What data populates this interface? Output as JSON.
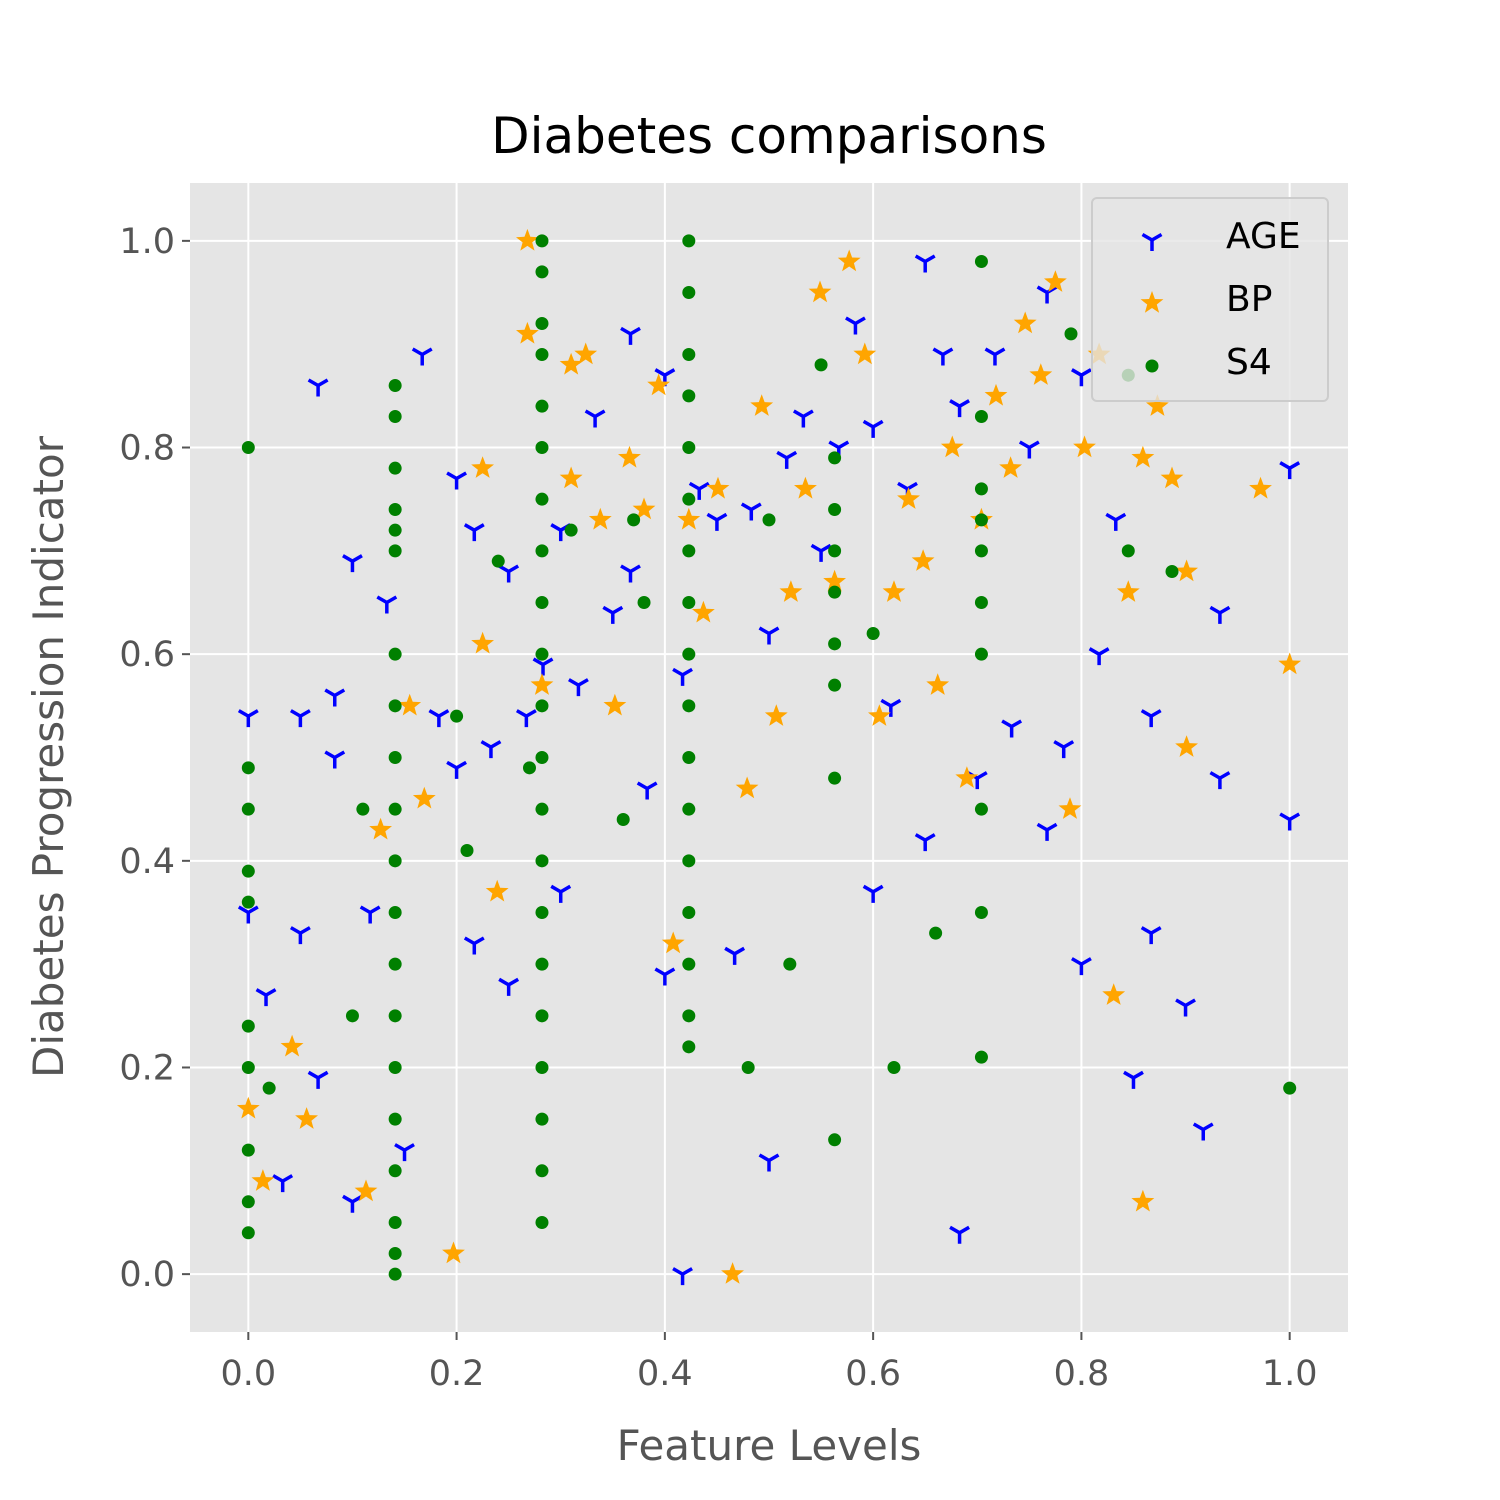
{
  "chart_data": {
    "type": "scatter",
    "title": "Diabetes comparisons",
    "xlabel": "Feature Levels",
    "ylabel": "Diabetes Progression Indicator",
    "xlim": [
      -0.056,
      1.056
    ],
    "ylim": [
      -0.056,
      1.056
    ],
    "xticks": [
      "0.0",
      "0.2",
      "0.4",
      "0.6",
      "0.8",
      "1.0"
    ],
    "yticks": [
      "0.0",
      "0.2",
      "0.4",
      "0.6",
      "0.8",
      "1.0"
    ],
    "grid": true,
    "legend_position": "top-right",
    "background": "#e5e5e5",
    "series": [
      {
        "name": "AGE",
        "color": "#0000ff",
        "marker": "tri-down",
        "points": [
          [
            0.0,
            0.54
          ],
          [
            0.0,
            0.35
          ],
          [
            0.017,
            0.27
          ],
          [
            0.033,
            0.09
          ],
          [
            0.05,
            0.54
          ],
          [
            0.05,
            0.33
          ],
          [
            0.067,
            0.86
          ],
          [
            0.067,
            0.19
          ],
          [
            0.083,
            0.56
          ],
          [
            0.083,
            0.5
          ],
          [
            0.1,
            0.69
          ],
          [
            0.1,
            0.07
          ],
          [
            0.117,
            0.35
          ],
          [
            0.133,
            0.65
          ],
          [
            0.15,
            0.12
          ],
          [
            0.167,
            0.89
          ],
          [
            0.183,
            0.54
          ],
          [
            0.2,
            0.77
          ],
          [
            0.2,
            0.49
          ],
          [
            0.217,
            0.72
          ],
          [
            0.217,
            0.32
          ],
          [
            0.233,
            0.51
          ],
          [
            0.25,
            0.68
          ],
          [
            0.25,
            0.28
          ],
          [
            0.267,
            0.54
          ],
          [
            0.283,
            0.59
          ],
          [
            0.3,
            0.72
          ],
          [
            0.3,
            0.37
          ],
          [
            0.317,
            0.57
          ],
          [
            0.333,
            0.83
          ],
          [
            0.35,
            0.64
          ],
          [
            0.367,
            0.91
          ],
          [
            0.367,
            0.68
          ],
          [
            0.383,
            0.47
          ],
          [
            0.4,
            0.87
          ],
          [
            0.4,
            0.29
          ],
          [
            0.417,
            0.0
          ],
          [
            0.417,
            0.58
          ],
          [
            0.433,
            0.76
          ],
          [
            0.45,
            0.73
          ],
          [
            0.467,
            0.31
          ],
          [
            0.483,
            0.74
          ],
          [
            0.5,
            0.62
          ],
          [
            0.5,
            0.11
          ],
          [
            0.517,
            0.79
          ],
          [
            0.533,
            0.83
          ],
          [
            0.55,
            0.7
          ],
          [
            0.567,
            0.8
          ],
          [
            0.583,
            0.92
          ],
          [
            0.6,
            0.82
          ],
          [
            0.6,
            0.37
          ],
          [
            0.617,
            0.55
          ],
          [
            0.633,
            0.76
          ],
          [
            0.65,
            0.98
          ],
          [
            0.65,
            0.42
          ],
          [
            0.667,
            0.89
          ],
          [
            0.683,
            0.84
          ],
          [
            0.683,
            0.04
          ],
          [
            0.7,
            0.48
          ],
          [
            0.717,
            0.89
          ],
          [
            0.733,
            0.53
          ],
          [
            0.75,
            0.8
          ],
          [
            0.767,
            0.95
          ],
          [
            0.767,
            0.43
          ],
          [
            0.783,
            0.51
          ],
          [
            0.8,
            0.87
          ],
          [
            0.8,
            0.3
          ],
          [
            0.817,
            0.6
          ],
          [
            0.833,
            0.73
          ],
          [
            0.85,
            0.19
          ],
          [
            0.867,
            0.54
          ],
          [
            0.867,
            0.33
          ],
          [
            0.9,
            0.26
          ],
          [
            0.917,
            0.14
          ],
          [
            0.933,
            0.64
          ],
          [
            0.933,
            0.48
          ],
          [
            1.0,
            0.78
          ],
          [
            1.0,
            0.44
          ]
        ]
      },
      {
        "name": "BP",
        "color": "#ffa500",
        "marker": "star",
        "points": [
          [
            0.0,
            0.16
          ],
          [
            0.014,
            0.09
          ],
          [
            0.042,
            0.22
          ],
          [
            0.056,
            0.15
          ],
          [
            0.113,
            0.08
          ],
          [
            0.127,
            0.43
          ],
          [
            0.155,
            0.55
          ],
          [
            0.169,
            0.46
          ],
          [
            0.197,
            0.02
          ],
          [
            0.225,
            0.78
          ],
          [
            0.225,
            0.61
          ],
          [
            0.239,
            0.37
          ],
          [
            0.268,
            1.0
          ],
          [
            0.268,
            0.91
          ],
          [
            0.282,
            0.57
          ],
          [
            0.31,
            0.88
          ],
          [
            0.31,
            0.77
          ],
          [
            0.324,
            0.89
          ],
          [
            0.338,
            0.73
          ],
          [
            0.352,
            0.55
          ],
          [
            0.366,
            0.79
          ],
          [
            0.38,
            0.74
          ],
          [
            0.394,
            0.86
          ],
          [
            0.408,
            0.32
          ],
          [
            0.423,
            0.73
          ],
          [
            0.437,
            0.64
          ],
          [
            0.451,
            0.76
          ],
          [
            0.465,
            0.0
          ],
          [
            0.479,
            0.47
          ],
          [
            0.493,
            0.84
          ],
          [
            0.507,
            0.54
          ],
          [
            0.521,
            0.66
          ],
          [
            0.535,
            0.76
          ],
          [
            0.549,
            0.95
          ],
          [
            0.563,
            0.67
          ],
          [
            0.577,
            0.98
          ],
          [
            0.592,
            0.89
          ],
          [
            0.606,
            0.54
          ],
          [
            0.62,
            0.66
          ],
          [
            0.634,
            0.75
          ],
          [
            0.648,
            0.69
          ],
          [
            0.662,
            0.57
          ],
          [
            0.676,
            0.8
          ],
          [
            0.69,
            0.48
          ],
          [
            0.704,
            0.73
          ],
          [
            0.718,
            0.85
          ],
          [
            0.732,
            0.78
          ],
          [
            0.746,
            0.92
          ],
          [
            0.761,
            0.87
          ],
          [
            0.775,
            0.96
          ],
          [
            0.789,
            0.45
          ],
          [
            0.803,
            0.8
          ],
          [
            0.817,
            0.89
          ],
          [
            0.831,
            0.27
          ],
          [
            0.845,
            0.66
          ],
          [
            0.859,
            0.79
          ],
          [
            0.859,
            0.07
          ],
          [
            0.873,
            0.84
          ],
          [
            0.887,
            0.77
          ],
          [
            0.901,
            0.68
          ],
          [
            0.901,
            0.51
          ],
          [
            0.972,
            0.76
          ],
          [
            1.0,
            0.59
          ]
        ]
      },
      {
        "name": "S4",
        "color": "#008000",
        "marker": "circle",
        "points": [
          [
            0.0,
            0.8
          ],
          [
            0.0,
            0.49
          ],
          [
            0.0,
            0.45
          ],
          [
            0.0,
            0.39
          ],
          [
            0.0,
            0.36
          ],
          [
            0.0,
            0.24
          ],
          [
            0.0,
            0.2
          ],
          [
            0.0,
            0.12
          ],
          [
            0.0,
            0.07
          ],
          [
            0.0,
            0.04
          ],
          [
            0.141,
            0.86
          ],
          [
            0.141,
            0.83
          ],
          [
            0.141,
            0.78
          ],
          [
            0.141,
            0.74
          ],
          [
            0.141,
            0.72
          ],
          [
            0.141,
            0.7
          ],
          [
            0.141,
            0.6
          ],
          [
            0.141,
            0.55
          ],
          [
            0.141,
            0.5
          ],
          [
            0.141,
            0.45
          ],
          [
            0.141,
            0.4
          ],
          [
            0.141,
            0.35
          ],
          [
            0.141,
            0.3
          ],
          [
            0.141,
            0.25
          ],
          [
            0.141,
            0.2
          ],
          [
            0.141,
            0.15
          ],
          [
            0.141,
            0.1
          ],
          [
            0.141,
            0.05
          ],
          [
            0.141,
            0.02
          ],
          [
            0.141,
            0.0
          ],
          [
            0.282,
            1.0
          ],
          [
            0.282,
            0.97
          ],
          [
            0.282,
            0.92
          ],
          [
            0.282,
            0.89
          ],
          [
            0.282,
            0.84
          ],
          [
            0.282,
            0.8
          ],
          [
            0.282,
            0.75
          ],
          [
            0.282,
            0.7
          ],
          [
            0.282,
            0.65
          ],
          [
            0.282,
            0.6
          ],
          [
            0.282,
            0.55
          ],
          [
            0.282,
            0.5
          ],
          [
            0.282,
            0.45
          ],
          [
            0.282,
            0.4
          ],
          [
            0.282,
            0.35
          ],
          [
            0.282,
            0.3
          ],
          [
            0.282,
            0.25
          ],
          [
            0.282,
            0.2
          ],
          [
            0.282,
            0.15
          ],
          [
            0.282,
            0.1
          ],
          [
            0.282,
            0.05
          ],
          [
            0.423,
            1.0
          ],
          [
            0.423,
            0.95
          ],
          [
            0.423,
            0.89
          ],
          [
            0.423,
            0.85
          ],
          [
            0.423,
            0.8
          ],
          [
            0.423,
            0.75
          ],
          [
            0.423,
            0.7
          ],
          [
            0.423,
            0.65
          ],
          [
            0.423,
            0.6
          ],
          [
            0.423,
            0.55
          ],
          [
            0.423,
            0.5
          ],
          [
            0.423,
            0.45
          ],
          [
            0.423,
            0.4
          ],
          [
            0.423,
            0.35
          ],
          [
            0.423,
            0.3
          ],
          [
            0.423,
            0.25
          ],
          [
            0.423,
            0.22
          ],
          [
            0.563,
            0.79
          ],
          [
            0.563,
            0.74
          ],
          [
            0.563,
            0.7
          ],
          [
            0.563,
            0.66
          ],
          [
            0.563,
            0.61
          ],
          [
            0.563,
            0.57
          ],
          [
            0.563,
            0.48
          ],
          [
            0.563,
            0.13
          ],
          [
            0.704,
            0.98
          ],
          [
            0.704,
            0.83
          ],
          [
            0.704,
            0.76
          ],
          [
            0.704,
            0.73
          ],
          [
            0.704,
            0.7
          ],
          [
            0.704,
            0.65
          ],
          [
            0.704,
            0.6
          ],
          [
            0.704,
            0.45
          ],
          [
            0.704,
            0.35
          ],
          [
            0.704,
            0.21
          ],
          [
            0.79,
            0.91
          ],
          [
            0.845,
            0.87
          ],
          [
            0.845,
            0.7
          ],
          [
            0.887,
            0.68
          ],
          [
            1.0,
            0.18
          ],
          [
            0.11,
            0.45
          ],
          [
            0.24,
            0.69
          ],
          [
            0.31,
            0.72
          ],
          [
            0.37,
            0.73
          ],
          [
            0.38,
            0.65
          ],
          [
            0.6,
            0.62
          ],
          [
            0.5,
            0.73
          ],
          [
            0.55,
            0.88
          ],
          [
            0.66,
            0.33
          ],
          [
            0.62,
            0.2
          ],
          [
            0.36,
            0.44
          ],
          [
            0.02,
            0.18
          ],
          [
            0.1,
            0.25
          ],
          [
            0.2,
            0.54
          ],
          [
            0.21,
            0.41
          ],
          [
            0.27,
            0.49
          ],
          [
            0.48,
            0.2
          ],
          [
            0.52,
            0.3
          ]
        ]
      }
    ]
  }
}
